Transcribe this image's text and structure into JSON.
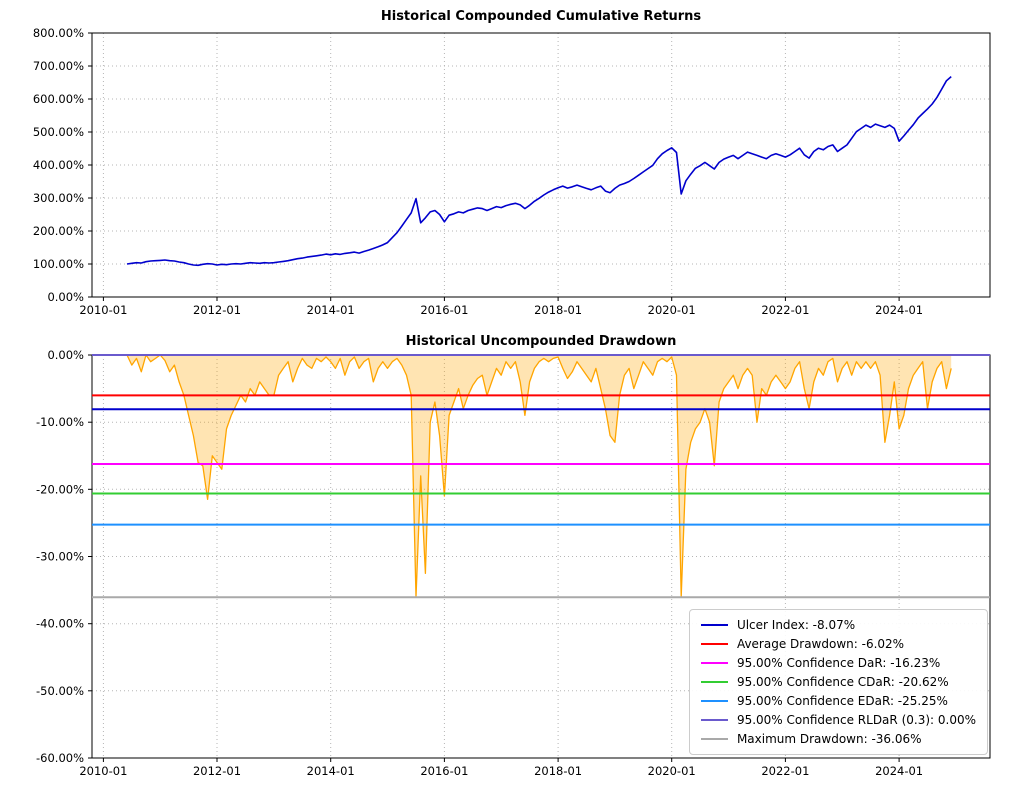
{
  "figure": {
    "background": "#ffffff"
  },
  "chart_data": [
    {
      "type": "line",
      "title": "Historical Compounded Cumulative Returns",
      "series_name": "Cumulative Returns",
      "series_color": "#0000cd",
      "grid": "dotted",
      "xlim": [
        2009.8,
        2025.6
      ],
      "ylim": [
        0,
        800
      ],
      "x_start": {
        "year": 2010,
        "month": 6
      },
      "points_per_year": 12,
      "xticks": {
        "values": [
          2010,
          2012,
          2014,
          2016,
          2018,
          2020,
          2022,
          2024
        ],
        "labels": [
          "2010-01",
          "2012-01",
          "2014-01",
          "2016-01",
          "2018-01",
          "2020-01",
          "2022-01",
          "2024-01"
        ]
      },
      "yticks": {
        "values": [
          0,
          100,
          200,
          300,
          400,
          500,
          600,
          700,
          800
        ],
        "labels": [
          "0.00%",
          "100.00%",
          "200.00%",
          "300.00%",
          "400.00%",
          "500.00%",
          "600.00%",
          "700.00%",
          "800.00%"
        ]
      },
      "values": [
        100,
        102,
        104,
        103,
        107,
        109,
        110,
        111,
        112,
        110,
        109,
        106,
        104,
        100,
        97,
        96,
        99,
        101,
        100,
        97,
        99,
        98,
        100,
        101,
        100,
        102,
        104,
        103,
        102,
        104,
        103,
        104,
        106,
        108,
        110,
        113,
        116,
        118,
        121,
        123,
        125,
        127,
        130,
        128,
        131,
        129,
        132,
        134,
        136,
        133,
        138,
        142,
        147,
        152,
        158,
        165,
        180,
        195,
        215,
        235,
        255,
        298,
        225,
        240,
        258,
        262,
        250,
        228,
        248,
        252,
        258,
        255,
        262,
        266,
        270,
        268,
        262,
        268,
        274,
        271,
        277,
        281,
        284,
        279,
        268,
        278,
        290,
        299,
        309,
        318,
        325,
        331,
        336,
        330,
        334,
        339,
        334,
        329,
        325,
        331,
        336,
        321,
        316,
        329,
        339,
        344,
        350,
        359,
        369,
        379,
        389,
        399,
        419,
        434,
        444,
        452,
        438,
        312,
        352,
        372,
        390,
        398,
        408,
        398,
        388,
        408,
        418,
        424,
        429,
        419,
        429,
        439,
        434,
        429,
        424,
        419,
        429,
        434,
        429,
        424,
        431,
        441,
        451,
        431,
        421,
        441,
        451,
        446,
        456,
        461,
        441,
        451,
        461,
        481,
        501,
        511,
        521,
        514,
        524,
        519,
        514,
        521,
        511,
        472,
        488,
        505,
        522,
        542,
        556,
        570,
        585,
        605,
        630,
        655,
        668
      ]
    },
    {
      "type": "area",
      "title": "Historical Uncompounded Drawdown",
      "series_name": "Drawdown",
      "series_color": "#ffa500",
      "fill_color": "rgba(255,165,0,0.3)",
      "grid": "dotted",
      "xlim": [
        2009.8,
        2025.6
      ],
      "ylim": [
        -60,
        0
      ],
      "x_start": {
        "year": 2010,
        "month": 6
      },
      "points_per_year": 12,
      "xticks": {
        "values": [
          2010,
          2012,
          2014,
          2016,
          2018,
          2020,
          2022,
          2024
        ],
        "labels": [
          "2010-01",
          "2012-01",
          "2014-01",
          "2016-01",
          "2018-01",
          "2020-01",
          "2022-01",
          "2024-01"
        ]
      },
      "yticks": {
        "values": [
          0,
          -10,
          -20,
          -30,
          -40,
          -50,
          -60
        ],
        "labels": [
          "0.00%",
          "-10.00%",
          "-20.00%",
          "-30.00%",
          "-40.00%",
          "-50.00%",
          "-60.00%"
        ]
      },
      "values": [
        0,
        -1.5,
        -0.5,
        -2.5,
        0,
        -1,
        -0.5,
        0,
        -0.8,
        -2.5,
        -1.5,
        -4,
        -6,
        -9,
        -12,
        -16,
        -16.5,
        -21.5,
        -15,
        -16,
        -17,
        -11,
        -9,
        -7.5,
        -6,
        -7,
        -5,
        -6,
        -4,
        -5,
        -6,
        -6,
        -3,
        -2,
        -1,
        -4,
        -2,
        -0.5,
        -1.5,
        -2,
        -0.5,
        -1,
        -0.3,
        -1,
        -2,
        -0.5,
        -3,
        -1,
        -0.3,
        -2,
        -1,
        -0.5,
        -4,
        -2,
        -1,
        -2,
        -1,
        -0.5,
        -1.5,
        -3,
        -6,
        -36,
        -18,
        -32.5,
        -10,
        -7,
        -12,
        -21,
        -9,
        -7,
        -5,
        -8,
        -6,
        -4.5,
        -3.5,
        -3,
        -6,
        -4,
        -2,
        -3,
        -1,
        -2,
        -1,
        -4,
        -9,
        -4,
        -2,
        -1,
        -0.5,
        -1,
        -0.5,
        -0.3,
        -2,
        -3.5,
        -2.5,
        -1,
        -2,
        -3,
        -4,
        -2,
        -5,
        -8,
        -12,
        -13,
        -6,
        -3,
        -2,
        -5,
        -3,
        -1,
        -2,
        -3,
        -1,
        -0.5,
        -1,
        -0.3,
        -3,
        -36,
        -17,
        -13,
        -11,
        -10,
        -8,
        -10,
        -16.5,
        -7,
        -5,
        -4,
        -3,
        -5,
        -3,
        -2,
        -3,
        -10,
        -5,
        -6,
        -4,
        -3,
        -4,
        -5,
        -4,
        -2,
        -1,
        -5,
        -8,
        -4,
        -2,
        -3,
        -1,
        -0.5,
        -4,
        -2,
        -1,
        -3,
        -1,
        -2,
        -1,
        -2,
        -1,
        -3,
        -13,
        -9,
        -4,
        -11,
        -9,
        -5,
        -3,
        -2,
        -1,
        -8,
        -4,
        -2,
        -1,
        -5,
        -2
      ],
      "hlines": [
        {
          "label": "Ulcer Index: -8.07%",
          "value": -8.07,
          "color": "#0000cd"
        },
        {
          "label": "Average Drawdown: -6.02%",
          "value": -6.02,
          "color": "#ff0000"
        },
        {
          "label": "95.00% Confidence DaR: -16.23%",
          "value": -16.23,
          "color": "#ff00ff"
        },
        {
          "label": "95.00% Confidence CDaR: -20.62%",
          "value": -20.62,
          "color": "#32cd32"
        },
        {
          "label": "95.00% Confidence EDaR: -25.25%",
          "value": -25.25,
          "color": "#1e90ff"
        },
        {
          "label": "95.00% Confidence RLDaR (0.3): 0.00%",
          "value": 0.0,
          "color": "#6a5acd"
        },
        {
          "label": "Maximum Drawdown: -36.06%",
          "value": -36.06,
          "color": "#a9a9a9"
        }
      ],
      "legend_position": "lower right"
    }
  ]
}
